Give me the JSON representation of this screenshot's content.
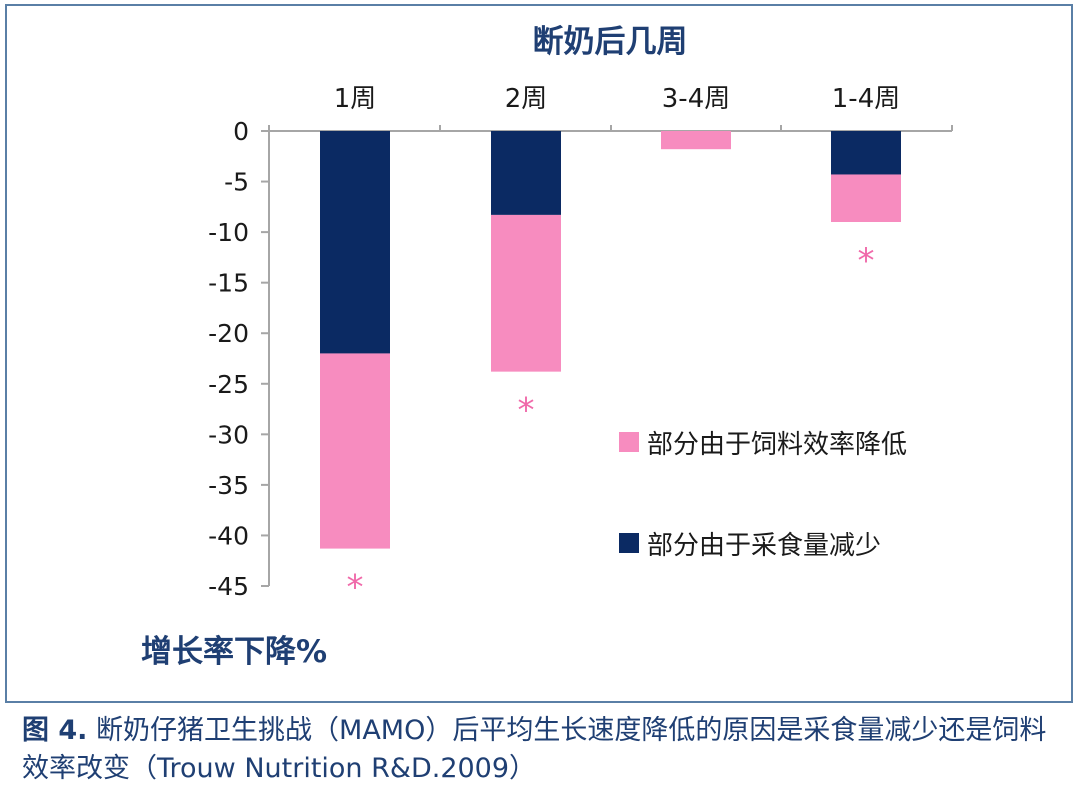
{
  "chart_data": {
    "type": "bar",
    "stacked": true,
    "title": "断奶后几周",
    "ylabel": "增长率下降%",
    "categories": [
      "1周",
      "2周",
      "3-4周",
      "1-4周"
    ],
    "ylim": [
      -45,
      0
    ],
    "yticks": [
      "0",
      "-5",
      "-10",
      "-15",
      "-20",
      "-25",
      "-30",
      "-35",
      "-40",
      "-45"
    ],
    "ytick_values": [
      0,
      -5,
      -10,
      -15,
      -20,
      -25,
      -30,
      -35,
      -40,
      -45
    ],
    "series": [
      {
        "name": "部分由于采食量减少",
        "color": "#0b2a63",
        "values": [
          -22,
          -8.3,
          0,
          -4.3
        ]
      },
      {
        "name": "部分由于饲料效率降低",
        "color": "#f78cbf",
        "values": [
          -19.3,
          -15.5,
          -1.8,
          -4.7
        ]
      }
    ],
    "significance": [
      "*",
      "*",
      "",
      "*"
    ],
    "significance_color": "#f06aaa",
    "legend_order": [
      1,
      0
    ]
  },
  "caption": {
    "figure_label": "图 4.",
    "text": "断奶仔猪卫生挑战（MAMO）后平均生长速度降低的原因是采食量减少还是饲料效率改变（Trouw Nutrition R&D.2009）"
  },
  "colors": {
    "title": "#1f3f73",
    "axis": "#a6a6a6",
    "frame": "#5a7fa6"
  }
}
